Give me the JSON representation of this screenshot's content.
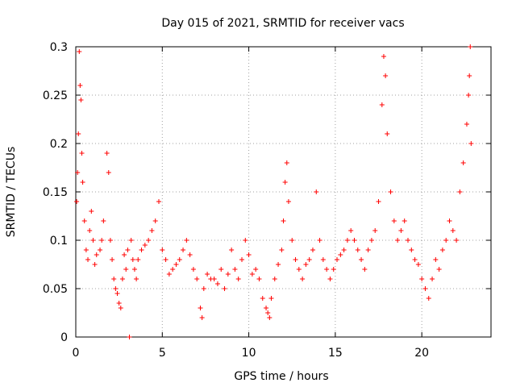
{
  "chart_data": {
    "type": "scatter",
    "title": "Day 015 of 2021, SRMTID for receiver vacs",
    "xlabel": "GPS time / hours",
    "ylabel": "SRMTID / TECUs",
    "xlim": [
      0,
      24
    ],
    "ylim": [
      0,
      0.3
    ],
    "x_ticks": [
      0,
      5,
      10,
      15,
      20
    ],
    "x_tick_labels": [
      "0",
      "5",
      "10",
      "15",
      "20"
    ],
    "y_ticks": [
      0,
      0.05,
      0.1,
      0.15,
      0.2,
      0.25,
      0.3
    ],
    "y_tick_labels": [
      "0",
      "0.05",
      "0.1",
      "0.15",
      "0.2",
      "0.25",
      "0.3"
    ],
    "grid": true,
    "marker": "plus",
    "series": [
      {
        "name": "SRMTID",
        "color": "#ff0000",
        "points": [
          [
            0.05,
            0.14
          ],
          [
            0.1,
            0.17
          ],
          [
            0.15,
            0.21
          ],
          [
            0.2,
            0.295
          ],
          [
            0.25,
            0.26
          ],
          [
            0.3,
            0.245
          ],
          [
            0.35,
            0.19
          ],
          [
            0.4,
            0.16
          ],
          [
            0.5,
            0.12
          ],
          [
            0.6,
            0.09
          ],
          [
            0.7,
            0.08
          ],
          [
            0.8,
            0.11
          ],
          [
            0.9,
            0.13
          ],
          [
            1.0,
            0.1
          ],
          [
            1.1,
            0.075
          ],
          [
            1.2,
            0.085
          ],
          [
            1.4,
            0.09
          ],
          [
            1.5,
            0.1
          ],
          [
            1.6,
            0.12
          ],
          [
            1.8,
            0.19
          ],
          [
            1.9,
            0.17
          ],
          [
            2.0,
            0.1
          ],
          [
            2.1,
            0.08
          ],
          [
            2.2,
            0.06
          ],
          [
            2.3,
            0.05
          ],
          [
            2.4,
            0.045
          ],
          [
            2.5,
            0.035
          ],
          [
            2.6,
            0.03
          ],
          [
            2.7,
            0.06
          ],
          [
            2.8,
            0.085
          ],
          [
            2.9,
            0.07
          ],
          [
            3.0,
            0.09
          ],
          [
            3.1,
            0.0
          ],
          [
            3.2,
            0.1
          ],
          [
            3.3,
            0.08
          ],
          [
            3.4,
            0.07
          ],
          [
            3.5,
            0.06
          ],
          [
            3.6,
            0.08
          ],
          [
            3.8,
            0.09
          ],
          [
            4.0,
            0.095
          ],
          [
            4.2,
            0.1
          ],
          [
            4.4,
            0.11
          ],
          [
            4.6,
            0.12
          ],
          [
            4.8,
            0.14
          ],
          [
            5.0,
            0.09
          ],
          [
            5.2,
            0.08
          ],
          [
            5.4,
            0.065
          ],
          [
            5.6,
            0.07
          ],
          [
            5.8,
            0.075
          ],
          [
            6.0,
            0.08
          ],
          [
            6.2,
            0.09
          ],
          [
            6.4,
            0.1
          ],
          [
            6.6,
            0.085
          ],
          [
            6.8,
            0.07
          ],
          [
            7.0,
            0.06
          ],
          [
            7.2,
            0.03
          ],
          [
            7.3,
            0.02
          ],
          [
            7.4,
            0.05
          ],
          [
            7.6,
            0.065
          ],
          [
            7.8,
            0.06
          ],
          [
            8.0,
            0.06
          ],
          [
            8.2,
            0.055
          ],
          [
            8.4,
            0.07
          ],
          [
            8.6,
            0.05
          ],
          [
            8.8,
            0.065
          ],
          [
            9.0,
            0.09
          ],
          [
            9.2,
            0.07
          ],
          [
            9.4,
            0.06
          ],
          [
            9.6,
            0.08
          ],
          [
            9.8,
            0.1
          ],
          [
            10.0,
            0.085
          ],
          [
            10.2,
            0.065
          ],
          [
            10.4,
            0.07
          ],
          [
            10.6,
            0.06
          ],
          [
            10.8,
            0.04
          ],
          [
            11.0,
            0.03
          ],
          [
            11.1,
            0.025
          ],
          [
            11.2,
            0.02
          ],
          [
            11.3,
            0.04
          ],
          [
            11.5,
            0.06
          ],
          [
            11.7,
            0.075
          ],
          [
            11.9,
            0.09
          ],
          [
            12.0,
            0.12
          ],
          [
            12.1,
            0.16
          ],
          [
            12.2,
            0.18
          ],
          [
            12.3,
            0.14
          ],
          [
            12.5,
            0.1
          ],
          [
            12.7,
            0.08
          ],
          [
            12.9,
            0.07
          ],
          [
            13.1,
            0.06
          ],
          [
            13.3,
            0.075
          ],
          [
            13.5,
            0.08
          ],
          [
            13.7,
            0.09
          ],
          [
            13.9,
            0.15
          ],
          [
            14.1,
            0.1
          ],
          [
            14.3,
            0.08
          ],
          [
            14.5,
            0.07
          ],
          [
            14.7,
            0.06
          ],
          [
            14.9,
            0.07
          ],
          [
            15.1,
            0.08
          ],
          [
            15.3,
            0.085
          ],
          [
            15.5,
            0.09
          ],
          [
            15.7,
            0.1
          ],
          [
            15.9,
            0.11
          ],
          [
            16.1,
            0.1
          ],
          [
            16.3,
            0.09
          ],
          [
            16.5,
            0.08
          ],
          [
            16.7,
            0.07
          ],
          [
            16.9,
            0.09
          ],
          [
            17.1,
            0.1
          ],
          [
            17.3,
            0.11
          ],
          [
            17.5,
            0.14
          ],
          [
            17.7,
            0.24
          ],
          [
            17.8,
            0.29
          ],
          [
            17.9,
            0.27
          ],
          [
            18.0,
            0.21
          ],
          [
            18.2,
            0.15
          ],
          [
            18.4,
            0.12
          ],
          [
            18.6,
            0.1
          ],
          [
            18.8,
            0.11
          ],
          [
            19.0,
            0.12
          ],
          [
            19.2,
            0.1
          ],
          [
            19.4,
            0.09
          ],
          [
            19.6,
            0.08
          ],
          [
            19.8,
            0.075
          ],
          [
            20.0,
            0.06
          ],
          [
            20.2,
            0.05
          ],
          [
            20.4,
            0.04
          ],
          [
            20.6,
            0.06
          ],
          [
            20.8,
            0.08
          ],
          [
            21.0,
            0.07
          ],
          [
            21.2,
            0.09
          ],
          [
            21.4,
            0.1
          ],
          [
            21.6,
            0.12
          ],
          [
            21.8,
            0.11
          ],
          [
            22.0,
            0.1
          ],
          [
            22.2,
            0.15
          ],
          [
            22.4,
            0.18
          ],
          [
            22.6,
            0.22
          ],
          [
            22.7,
            0.25
          ],
          [
            22.75,
            0.27
          ],
          [
            22.8,
            0.3
          ],
          [
            22.85,
            0.2
          ]
        ]
      }
    ]
  }
}
